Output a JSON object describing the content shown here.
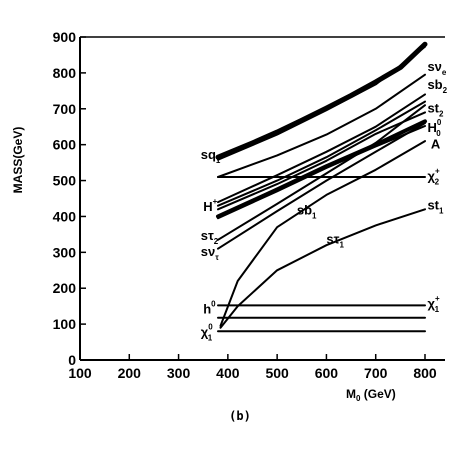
{
  "chart_data": {
    "type": "line",
    "title": "",
    "ylabel": "MASS(GeV)",
    "xlabel": {
      "main": "M",
      "sub": "0",
      "unit": " (GeV)"
    },
    "caption": "(b)",
    "xlim": [
      100,
      850
    ],
    "ylim": [
      0,
      900
    ],
    "x_ticks": [
      "100",
      "200",
      "300",
      "400",
      "500",
      "600",
      "700",
      "800"
    ],
    "y_ticks": [
      "0",
      "100",
      "200",
      "300",
      "400",
      "500",
      "600",
      "700",
      "800",
      "900"
    ],
    "grid": false,
    "legend": "none",
    "series": [
      {
        "x": [
          380,
          450,
          500,
          550,
          600,
          650,
          700,
          750,
          800
        ],
        "y": [
          565,
          605,
          635,
          668,
          702,
          737,
          775,
          815,
          880
        ],
        "width": 5
      },
      {
        "x": [
          380,
          500,
          600,
          700,
          800
        ],
        "y": [
          558,
          628,
          696,
          768,
          873
        ],
        "width": 2
      },
      {
        "x": [
          380,
          500,
          600,
          700,
          800
        ],
        "y": [
          510,
          570,
          628,
          700,
          795
        ],
        "width": 2
      },
      {
        "x": [
          380,
          500,
          600,
          700,
          800
        ],
        "y": [
          440,
          515,
          580,
          650,
          740
        ],
        "width": 2
      },
      {
        "x": [
          380,
          500,
          600,
          700,
          800
        ],
        "y": [
          430,
          500,
          565,
          640,
          720
        ],
        "width": 2
      },
      {
        "x": [
          380,
          500,
          600,
          700,
          800
        ],
        "y": [
          420,
          490,
          555,
          630,
          690
        ],
        "width": 2
      },
      {
        "x": [
          380,
          500,
          600,
          700,
          800
        ],
        "y": [
          400,
          475,
          540,
          600,
          665
        ],
        "width": 4
      },
      {
        "x": [
          380,
          500,
          600,
          700,
          800
        ],
        "y": [
          395,
          470,
          535,
          595,
          652
        ],
        "width": 2
      },
      {
        "x": [
          380,
          500,
          600,
          700,
          800
        ],
        "y": [
          335,
          435,
          520,
          605,
          710
        ],
        "width": 2
      },
      {
        "x": [
          380,
          500,
          600,
          700,
          800
        ],
        "y": [
          310,
          415,
          500,
          580,
          660
        ],
        "width": 2
      },
      {
        "x": [
          380,
          800
        ],
        "y": [
          510,
          510
        ],
        "width": 2
      },
      {
        "x": [
          385,
          420,
          500,
          600,
          700,
          800
        ],
        "y": [
          95,
          220,
          370,
          460,
          530,
          610
        ],
        "width": 2
      },
      {
        "x": [
          385,
          420,
          500,
          600,
          700,
          800
        ],
        "y": [
          90,
          150,
          250,
          320,
          375,
          420
        ],
        "width": 2
      },
      {
        "x": [
          380,
          800
        ],
        "y": [
          152,
          152
        ],
        "width": 2
      },
      {
        "x": [
          380,
          800
        ],
        "y": [
          118,
          118
        ],
        "width": 2
      },
      {
        "x": [
          380,
          800
        ],
        "y": [
          80,
          80
        ],
        "width": 2
      }
    ],
    "labels": [
      {
        "main": "sq",
        "sub": "1",
        "sup": "",
        "x": 345,
        "y": 560
      },
      {
        "main": "H",
        "sub": "",
        "sup": "+",
        "x": 350,
        "y": 415
      },
      {
        "main": "sτ",
        "sub": "2",
        "sup": "",
        "x": 345,
        "y": 335
      },
      {
        "main": "sν",
        "sub": "τ",
        "sup": "",
        "x": 345,
        "y": 290
      },
      {
        "main": "sb",
        "sub": "1",
        "sup": "",
        "x": 540,
        "y": 405
      },
      {
        "main": "sτ",
        "sub": "1",
        "sup": "",
        "x": 600,
        "y": 325
      },
      {
        "main": "h",
        "sub": "",
        "sup": "0",
        "x": 350,
        "y": 130
      },
      {
        "main": "χ",
        "sub": "1",
        "sup": "0",
        "x": 345,
        "y": 65
      },
      {
        "main": "sν",
        "sub": "e",
        "sup": "",
        "x": 805,
        "y": 805
      },
      {
        "main": "sb",
        "sub": "2",
        "sup": "",
        "x": 805,
        "y": 755
      },
      {
        "main": "st",
        "sub": "2",
        "sup": "",
        "x": 805,
        "y": 690
      },
      {
        "main": "H",
        "sub": "0",
        "sup": "0",
        "x": 805,
        "y": 635
      },
      {
        "main": "A",
        "sub": "",
        "sup": "",
        "x": 812,
        "y": 590
      },
      {
        "main": "χ",
        "sub": "2",
        "sup": "+",
        "x": 805,
        "y": 500
      },
      {
        "main": "st",
        "sub": "1",
        "sup": "",
        "x": 805,
        "y": 420
      },
      {
        "main": "χ",
        "sub": "1",
        "sup": "+",
        "x": 805,
        "y": 145
      }
    ]
  }
}
